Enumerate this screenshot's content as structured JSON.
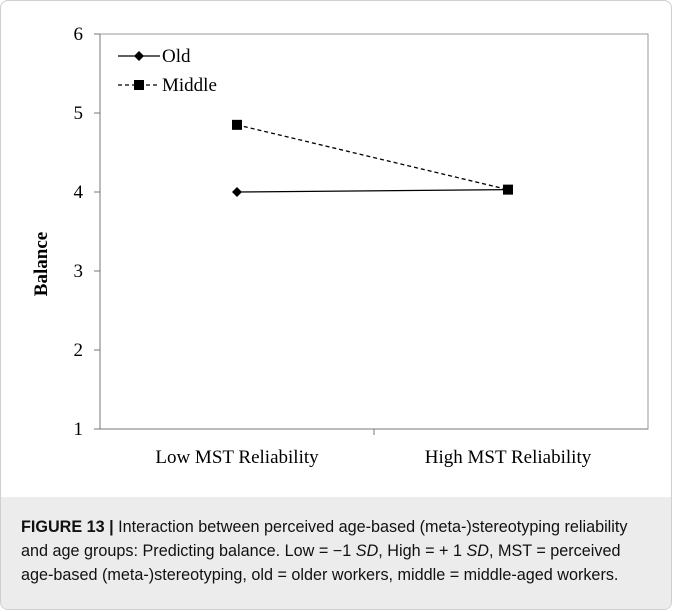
{
  "chart_data": {
    "type": "line",
    "title": "",
    "xlabel": "",
    "ylabel": "Balance",
    "categories": [
      "Low MST Reliability",
      "High MST Reliability"
    ],
    "ylim": [
      1,
      6
    ],
    "yticks": [
      "1",
      "2",
      "3",
      "4",
      "5",
      "6"
    ],
    "grid": false,
    "legend_position": "top-left",
    "series": [
      {
        "name": "Old",
        "values": [
          4.0,
          4.03
        ],
        "line_style": "solid",
        "marker": "diamond",
        "color": "#000000"
      },
      {
        "name": "Middle",
        "values": [
          4.85,
          4.03
        ],
        "line_style": "dashed",
        "marker": "square",
        "color": "#000000"
      }
    ]
  },
  "caption": {
    "label": "FIGURE 13 |",
    "part1": " Interaction between perceived age-based (meta-)stereotyping reliability and age groups: Predicting balance. Low = −1 ",
    "sd": "SD",
    "part2": ", High = + 1 ",
    "part3": ", MST = perceived age-based (meta-)stereotyping, old = older workers, middle = middle-aged workers."
  }
}
